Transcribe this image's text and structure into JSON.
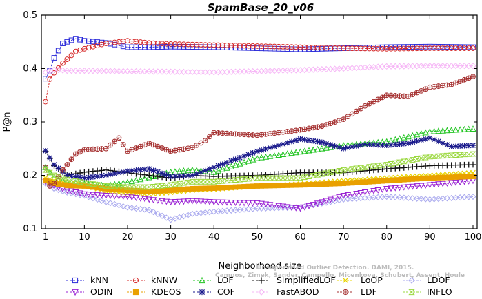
{
  "chart_data": {
    "type": "line",
    "title": "SpamBase_20_v06",
    "xlabel": "Neighborhood size",
    "ylabel": "P@n",
    "xlim": [
      1,
      100
    ],
    "ylim": [
      0.1,
      0.5
    ],
    "xticks": [
      1,
      10,
      20,
      30,
      40,
      50,
      60,
      70,
      80,
      90,
      100
    ],
    "yticks": [
      0.1,
      0.2,
      0.3,
      0.4,
      0.5
    ],
    "grid": false,
    "legend_position": "bottom",
    "credit_lines": [
      "Unsupervised Outlier Detection. DAMI, 2015.",
      "Campos, Zimek, Sander, Campello, Micenkova, Schubert, Assent, Houle"
    ],
    "series": [
      {
        "name": "kNN",
        "color": "#2b2bd9",
        "marker": "square",
        "x": [
          1,
          2,
          3,
          5,
          8,
          10,
          15,
          20,
          25,
          30,
          40,
          50,
          60,
          70,
          80,
          90,
          100
        ],
        "y": [
          0.381,
          0.396,
          0.42,
          0.447,
          0.456,
          0.452,
          0.448,
          0.44,
          0.44,
          0.441,
          0.44,
          0.438,
          0.436,
          0.438,
          0.44,
          0.441,
          0.44
        ]
      },
      {
        "name": "kNNW",
        "color": "#d62a2a",
        "marker": "circle",
        "x": [
          1,
          2,
          3,
          5,
          8,
          10,
          15,
          20,
          25,
          30,
          40,
          50,
          60,
          70,
          80,
          90,
          100
        ],
        "y": [
          0.338,
          0.38,
          0.392,
          0.41,
          0.432,
          0.437,
          0.447,
          0.452,
          0.448,
          0.446,
          0.444,
          0.442,
          0.44,
          0.438,
          0.437,
          0.438,
          0.438
        ]
      },
      {
        "name": "LOF",
        "color": "#22c422",
        "marker": "triangle-up",
        "x": [
          1,
          3,
          6,
          10,
          15,
          20,
          25,
          30,
          35,
          40,
          50,
          60,
          70,
          80,
          90,
          100
        ],
        "y": [
          0.215,
          0.196,
          0.187,
          0.184,
          0.181,
          0.187,
          0.196,
          0.206,
          0.21,
          0.206,
          0.232,
          0.244,
          0.256,
          0.263,
          0.282,
          0.287
        ]
      },
      {
        "name": "SimplifiedLOF",
        "color": "#111111",
        "marker": "plus",
        "x": [
          1,
          3,
          6,
          10,
          15,
          20,
          25,
          30,
          35,
          40,
          50,
          60,
          70,
          80,
          90,
          100
        ],
        "y": [
          0.245,
          0.218,
          0.2,
          0.206,
          0.21,
          0.205,
          0.2,
          0.195,
          0.2,
          0.198,
          0.2,
          0.205,
          0.205,
          0.212,
          0.218,
          0.22
        ]
      },
      {
        "name": "LoOP",
        "color": "#e8d400",
        "marker": "cross",
        "x": [
          1,
          3,
          6,
          10,
          15,
          20,
          25,
          30,
          35,
          40,
          50,
          60,
          70,
          80,
          90,
          100
        ],
        "y": [
          0.195,
          0.19,
          0.186,
          0.182,
          0.17,
          0.166,
          0.165,
          0.168,
          0.172,
          0.174,
          0.18,
          0.184,
          0.19,
          0.195,
          0.2,
          0.205
        ]
      },
      {
        "name": "LDOF",
        "color": "#a9a9ee",
        "marker": "diamond",
        "x": [
          1,
          3,
          6,
          10,
          15,
          20,
          25,
          30,
          35,
          40,
          50,
          60,
          70,
          80,
          90,
          100
        ],
        "y": [
          0.185,
          0.175,
          0.168,
          0.162,
          0.15,
          0.14,
          0.135,
          0.117,
          0.128,
          0.132,
          0.138,
          0.14,
          0.155,
          0.16,
          0.155,
          0.16
        ]
      },
      {
        "name": "ODIN",
        "color": "#9a22d4",
        "marker": "triangle-down",
        "x": [
          1,
          3,
          6,
          10,
          15,
          20,
          25,
          30,
          35,
          40,
          50,
          60,
          70,
          80,
          90,
          100
        ],
        "y": [
          0.188,
          0.18,
          0.172,
          0.165,
          0.162,
          0.16,
          0.155,
          0.15,
          0.152,
          0.15,
          0.148,
          0.138,
          0.162,
          0.175,
          0.182,
          0.19
        ]
      },
      {
        "name": "KDEOS",
        "color": "#e9a000",
        "marker": "square-filled",
        "x": [
          1,
          3,
          6,
          10,
          15,
          20,
          25,
          30,
          35,
          40,
          50,
          60,
          70,
          80,
          90,
          100
        ],
        "y": [
          0.19,
          0.185,
          0.181,
          0.18,
          0.175,
          0.172,
          0.17,
          0.172,
          0.175,
          0.176,
          0.18,
          0.182,
          0.185,
          0.19,
          0.195,
          0.198
        ]
      },
      {
        "name": "COF",
        "color": "#1a1a8c",
        "marker": "star",
        "x": [
          1,
          3,
          6,
          10,
          15,
          20,
          25,
          30,
          35,
          40,
          45,
          50,
          55,
          60,
          65,
          70,
          75,
          80,
          85,
          90,
          95,
          100
        ],
        "y": [
          0.246,
          0.22,
          0.2,
          0.195,
          0.2,
          0.208,
          0.212,
          0.198,
          0.2,
          0.215,
          0.23,
          0.245,
          0.256,
          0.268,
          0.262,
          0.25,
          0.258,
          0.256,
          0.26,
          0.27,
          0.254,
          0.256
        ]
      },
      {
        "name": "FastABOD",
        "color": "#f6b7f6",
        "marker": "diamond",
        "x": [
          1,
          3,
          6,
          10,
          20,
          30,
          40,
          50,
          60,
          70,
          80,
          90,
          100
        ],
        "y": [
          0.393,
          0.398,
          0.396,
          0.396,
          0.395,
          0.394,
          0.393,
          0.395,
          0.397,
          0.4,
          0.404,
          0.405,
          0.405
        ]
      },
      {
        "name": "LDF",
        "color": "#a53030",
        "marker": "circle-cross",
        "x": [
          1,
          2,
          3,
          5,
          8,
          10,
          15,
          18,
          20,
          25,
          30,
          35,
          38,
          40,
          50,
          60,
          65,
          70,
          75,
          80,
          85,
          90,
          95,
          100
        ],
        "y": [
          0.215,
          0.18,
          0.185,
          0.21,
          0.24,
          0.248,
          0.25,
          0.27,
          0.245,
          0.26,
          0.245,
          0.252,
          0.265,
          0.28,
          0.275,
          0.285,
          0.292,
          0.305,
          0.33,
          0.35,
          0.348,
          0.365,
          0.37,
          0.385
        ]
      },
      {
        "name": "INFLO",
        "color": "#9ad83e",
        "marker": "hourglass",
        "x": [
          1,
          3,
          6,
          10,
          15,
          20,
          25,
          30,
          35,
          40,
          50,
          60,
          70,
          80,
          90,
          100
        ],
        "y": [
          0.21,
          0.2,
          0.192,
          0.186,
          0.18,
          0.178,
          0.178,
          0.182,
          0.188,
          0.188,
          0.195,
          0.195,
          0.21,
          0.22,
          0.235,
          0.24
        ]
      }
    ]
  }
}
